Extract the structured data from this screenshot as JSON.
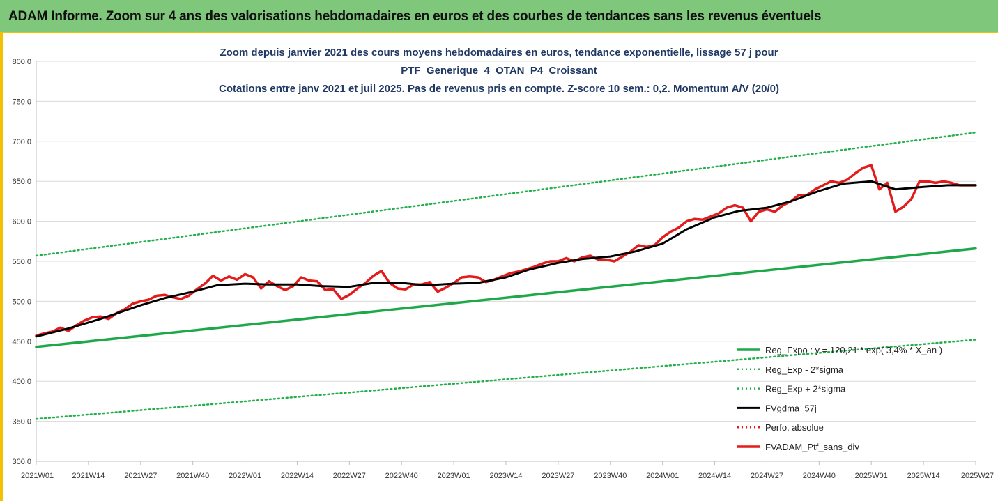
{
  "header": {
    "title": "ADAM Informe. Zoom sur 4 ans des valorisations hebdomadaires en euros et des courbes de tendances sans les revenus éventuels"
  },
  "colors": {
    "banner": "#7fc77a",
    "accent": "#f2c200",
    "trend": "#1fa84a",
    "band": "#22b04b",
    "smooth": "#000000",
    "price": "#e41b1b"
  },
  "chart_data": {
    "type": "line",
    "title_lines": [
      "Zoom depuis janvier 2021 des cours moyens hebdomadaires  en euros, tendance exponentielle, lissage 57 j pour",
      "PTF_Generique_4_OTAN_P4_Croissant",
      "Cotations entre janv 2021 et juil 2025. Pas de revenus pris en compte. Z-score 10 sem.: 0,2. Momentum A/V (20/0)"
    ],
    "x_tick_labels": [
      "2021W01",
      "2021W14",
      "2021W27",
      "2021W40",
      "2022W01",
      "2022W14",
      "2022W27",
      "2022W40",
      "2023W01",
      "2023W14",
      "2023W27",
      "2023W40",
      "2024W01",
      "2024W14",
      "2024W27",
      "2024W40",
      "2025W01",
      "2025W14",
      "2025W27"
    ],
    "y_tick_labels": [
      "300,0",
      "350,0",
      "400,0",
      "450,0",
      "500,0",
      "550,0",
      "600,0",
      "650,0",
      "700,0",
      "750,0",
      "800,0"
    ],
    "ylim": [
      300,
      800
    ],
    "grid": "horizontal",
    "legend_position": "bottom-right",
    "series": [
      {
        "name": "Reg_Expo : y = 120,21 * exp( 3,4% * X_an )",
        "style": "solid-green",
        "x": [
          0,
          234
        ],
        "values": [
          443,
          566
        ]
      },
      {
        "name": "Reg_Exp - 2*sigma",
        "style": "dotted-green",
        "x": [
          0,
          234
        ],
        "values": [
          353,
          452
        ]
      },
      {
        "name": "Reg_Exp + 2*sigma",
        "style": "dotted-green",
        "x": [
          0,
          234
        ],
        "values": [
          557,
          711
        ]
      },
      {
        "name": "FVgdma_57j",
        "style": "solid-black",
        "x": [
          0,
          8,
          16,
          26,
          32,
          39,
          45,
          52,
          58,
          65,
          71,
          78,
          84,
          91,
          97,
          104,
          110,
          117,
          123,
          130,
          136,
          143,
          149,
          156,
          162,
          169,
          175,
          182,
          188,
          195,
          201,
          208,
          214,
          221,
          227,
          234
        ],
        "values": [
          456,
          466,
          478,
          495,
          504,
          512,
          520,
          522,
          521,
          521,
          519,
          518,
          523,
          523,
          520,
          522,
          523,
          530,
          540,
          548,
          553,
          556,
          562,
          572,
          590,
          605,
          613,
          617,
          625,
          638,
          647,
          650,
          640,
          643,
          645,
          645
        ]
      },
      {
        "name": "Perfo. absolue",
        "style": "dotted-red",
        "x": [],
        "values": []
      },
      {
        "name": "FVADAM_Ptf_sans_div",
        "style": "solid-red",
        "x": [
          0,
          2,
          4,
          6,
          8,
          10,
          12,
          14,
          16,
          18,
          20,
          22,
          24,
          26,
          28,
          30,
          32,
          34,
          36,
          38,
          40,
          42,
          44,
          46,
          48,
          50,
          52,
          54,
          56,
          58,
          60,
          62,
          64,
          66,
          68,
          70,
          72,
          74,
          76,
          78,
          80,
          82,
          84,
          86,
          88,
          90,
          92,
          94,
          96,
          98,
          100,
          102,
          104,
          106,
          108,
          110,
          112,
          114,
          116,
          118,
          120,
          122,
          124,
          126,
          128,
          130,
          132,
          134,
          136,
          138,
          140,
          142,
          144,
          146,
          148,
          150,
          152,
          154,
          156,
          158,
          160,
          162,
          164,
          166,
          168,
          170,
          172,
          174,
          176,
          178,
          180,
          182,
          184,
          186,
          188,
          190,
          192,
          194,
          196,
          198,
          200,
          202,
          204,
          206,
          208,
          210,
          212,
          214,
          216,
          218,
          220,
          222,
          224,
          226,
          228,
          230,
          232,
          234
        ],
        "values": [
          457,
          460,
          462,
          467,
          463,
          470,
          476,
          480,
          481,
          478,
          485,
          490,
          497,
          500,
          502,
          507,
          508,
          505,
          503,
          507,
          515,
          522,
          532,
          526,
          531,
          527,
          534,
          530,
          516,
          525,
          519,
          514,
          519,
          530,
          526,
          525,
          514,
          515,
          503,
          508,
          516,
          523,
          532,
          538,
          523,
          516,
          515,
          521,
          521,
          524,
          512,
          517,
          523,
          530,
          531,
          530,
          524,
          527,
          531,
          535,
          537,
          540,
          543,
          547,
          550,
          550,
          554,
          550,
          555,
          557,
          552,
          552,
          550,
          556,
          562,
          570,
          568,
          570,
          580,
          587,
          592,
          600,
          603,
          602,
          606,
          610,
          617,
          620,
          617,
          600,
          612,
          615,
          612,
          620,
          625,
          633,
          633,
          640,
          645,
          650,
          648,
          652,
          660,
          667,
          670,
          640,
          648,
          612,
          618,
          628,
          650,
          650,
          648,
          650,
          648,
          645,
          645,
          645
        ]
      }
    ]
  }
}
